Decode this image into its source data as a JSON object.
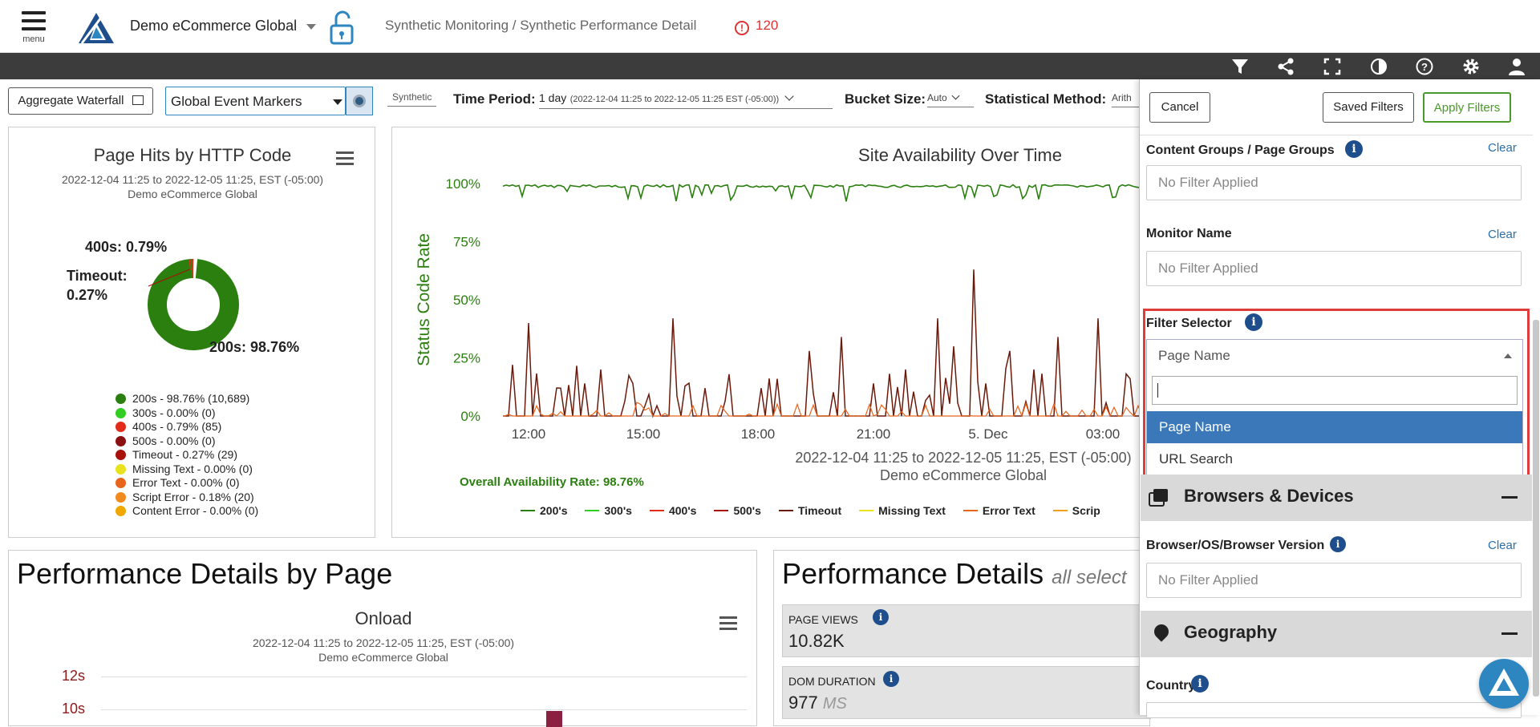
{
  "header": {
    "menu_label": "menu",
    "app_name": "Demo eCommerce Global",
    "breadcrumb": "Synthetic Monitoring / Synthetic Performance Detail",
    "alert_count": "120",
    "alert_color": "#dd3333"
  },
  "toolbar_icons": [
    "filter-icon",
    "share-icon",
    "fullscreen-icon",
    "contrast-icon",
    "help-icon",
    "settings-icon",
    "user-icon"
  ],
  "controls": {
    "aggregate_waterfall": "Aggregate Waterfall",
    "event_markers": "Global Event Markers",
    "source_tag": "Synthetic",
    "time_period_label": "Time Period:",
    "time_period_value": "1 day",
    "time_period_range": "(2022-12-04 11:25 to 2022-12-05 11:25 EST (-05:00))",
    "bucket_label": "Bucket Size:",
    "bucket_value": "Auto",
    "stat_label": "Statistical Method:",
    "stat_value": "Arith"
  },
  "http_panel": {
    "title": "Page Hits by HTTP Code",
    "range": "2022-12-04 11:25 to 2022-12-05 11:25, EST (-05:00)",
    "site": "Demo eCommerce Global",
    "label_400": "400s: 0.79%",
    "label_timeout_1": "Timeout:",
    "label_timeout_2": "0.27%",
    "label_200": "200s: 98.76%",
    "legend": [
      {
        "text": "200s - 98.76% (10,689)",
        "color": "#2a7f0f"
      },
      {
        "text": "300s - 0.00% (0)",
        "color": "#33cc22"
      },
      {
        "text": "400s - 0.79% (85)",
        "color": "#e32b19"
      },
      {
        "text": "500s - 0.00% (0)",
        "color": "#8b1010"
      },
      {
        "text": "Timeout - 0.27% (29)",
        "color": "#a8120a"
      },
      {
        "text": "Missing Text - 0.00% (0)",
        "color": "#e8e21f"
      },
      {
        "text": "Error Text - 0.00% (0)",
        "color": "#e8641a"
      },
      {
        "text": "Script Error - 0.18% (20)",
        "color": "#f08a1c"
      },
      {
        "text": "Content Error - 0.00% (0)",
        "color": "#f0a800"
      }
    ]
  },
  "avail_panel": {
    "title": "Site Availability Over Time",
    "range": "2022-12-04 11:25 to 2022-12-05 11:25, EST (-05:00)",
    "site": "Demo eCommerce Global",
    "overall": "Overall Availability Rate: 98.76%",
    "legend": [
      {
        "text": "200's",
        "color": "#2a7f0f"
      },
      {
        "text": "300's",
        "color": "#33cc22"
      },
      {
        "text": "400's",
        "color": "#e32b19"
      },
      {
        "text": "500's",
        "color": "#a8120a"
      },
      {
        "text": "Timeout",
        "color": "#6b1a0a"
      },
      {
        "text": "Missing Text",
        "color": "#e8e21f"
      },
      {
        "text": "Error Text",
        "color": "#e8641a"
      },
      {
        "text": "Scrip",
        "color": "#f0a020"
      }
    ]
  },
  "chart_data": {
    "type": "line",
    "ylabel": "Status Code Rate",
    "y_ticks": [
      "100%",
      "75%",
      "50%",
      "25%",
      "0%"
    ],
    "x_ticks": [
      "12:00",
      "15:00",
      "18:00",
      "21:00",
      "5. Dec",
      "03:00"
    ],
    "ylim": [
      0,
      100
    ],
    "series": [
      {
        "name": "200's",
        "approx": "near 100% throughout with occasional dips to ~90%"
      },
      {
        "name": "Timeout",
        "approx": "mostly 0% with spikes up to ~63%"
      }
    ]
  },
  "perf_page": {
    "heading": "Performance Details by Page",
    "chart_title": "Onload",
    "range": "2022-12-04 11:25 to 2022-12-05 11:25, EST (-05:00)",
    "site": "Demo eCommerce Global",
    "y_ticks": [
      "12s",
      "10s"
    ]
  },
  "perf_details": {
    "heading": "Performance Details",
    "subheading": "all select",
    "cards": [
      {
        "label": "PAGE VIEWS",
        "value": "10.82K",
        "unit": ""
      },
      {
        "label": "DOM DURATION",
        "value": "977",
        "unit": "MS"
      }
    ]
  },
  "filters": {
    "cancel": "Cancel",
    "saved": "Saved Filters",
    "apply": "Apply Filters",
    "apply_color": "#4a9a2a",
    "highlight_color": "#e03c3c",
    "clear": "Clear",
    "content_groups_label": "Content Groups / Page Groups",
    "no_filter": "No Filter Applied",
    "monitor_label": "Monitor Name",
    "selector_label": "Filter Selector",
    "selector_value": "Page Name",
    "selector_search": "",
    "options": [
      "Page Name",
      "URL Search"
    ],
    "browsers_section": "Browsers & Devices",
    "browser_label": "Browser/OS/Browser Version",
    "geo_section": "Geography",
    "country_label": "Country"
  }
}
